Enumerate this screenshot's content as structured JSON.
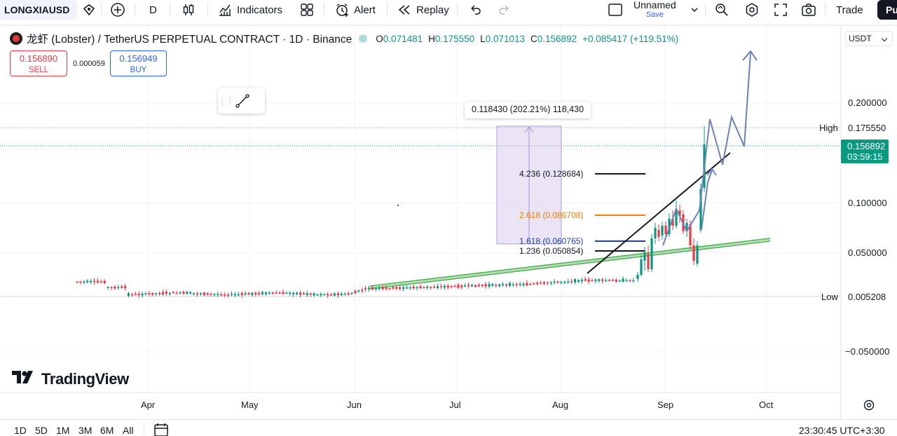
{
  "toolbar": {
    "symbol": "LONGXIAUSD",
    "interval": "D",
    "indicators_label": "Indicators",
    "alert_label": "Alert",
    "replay_label": "Replay",
    "layout_name": "Unnamed",
    "save_label": "Save",
    "trade_label": "Trade",
    "publish_label": "Pu"
  },
  "legend": {
    "title": "龙虾 (Lobster) / TetherUS PERPETUAL CONTRACT · 1D · Binance",
    "open_key": "O",
    "open": "0.071481",
    "high_key": "H",
    "high": "0.175550",
    "low_key": "L",
    "low": "0.071013",
    "close_key": "C",
    "close": "0.156892",
    "change": "+0.085417 (+119.51%)"
  },
  "trade_panel": {
    "sell_price": "0.156890",
    "sell_label": "SELL",
    "spread": "0.000059",
    "buy_price": "0.156949",
    "buy_label": "BUY"
  },
  "price_scale": {
    "currency": "USDT",
    "labels": [
      "0.200000",
      "0.100000",
      "0.050000",
      "−0.050000"
    ],
    "high_tag": "High",
    "high_value": "0.175550",
    "low_tag": "Low",
    "low_value": "0.005208",
    "current_price": "0.156892",
    "countdown": "03:59:15"
  },
  "drawings": {
    "measure_label": "0.118430 (202.21%) 118,430",
    "fib_levels": [
      {
        "label": "4.236 (0.128684)",
        "color": "#131722"
      },
      {
        "label": "2.618 (0.086708)",
        "color": "#f57c00"
      },
      {
        "label": "1.618 (0.060765)",
        "color": "#1e40af"
      },
      {
        "label": "1.236 (0.050854)",
        "color": "#131722"
      }
    ],
    "trendline_color": "#4caf50"
  },
  "watermark": "TradingView",
  "time_axis": [
    "Apr",
    "May",
    "Jun",
    "Jul",
    "Aug",
    "Sep",
    "Oct"
  ],
  "bottom_bar": {
    "ranges": [
      "1D",
      "5D",
      "1M",
      "3M",
      "6M",
      "All"
    ],
    "clock": "23:30:45 UTC+3:30"
  },
  "colors": {
    "up": "#089981",
    "down": "#f23645",
    "accent": "#2962ff"
  }
}
